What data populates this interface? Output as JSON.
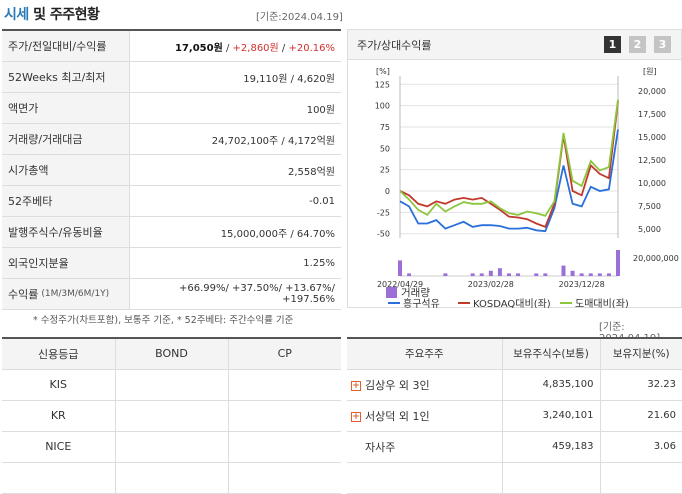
{
  "header": {
    "title_accent": "시세",
    "title_rest": " 및 주주현황",
    "date": "[기준:2024.04.19]"
  },
  "summary": [
    {
      "label": "주가/전일대비/수익률",
      "price": "17,050원",
      "change": "+2,860원",
      "rate": "+20.16%"
    },
    {
      "label": "52Weeks 최고/최저",
      "value": "19,110원 / 4,620원"
    },
    {
      "label": "액면가",
      "value": "100원"
    },
    {
      "label": "거래량/거래대금",
      "value": "24,702,100주 / 4,172억원"
    },
    {
      "label": "시가총액",
      "value": "2,558억원"
    },
    {
      "label": "52주베타",
      "value": "-0.01"
    },
    {
      "label": "발행주식수/유동비율",
      "value": "15,000,000주 / 64.70%"
    },
    {
      "label": "외국인지분율",
      "value": "1.25%"
    },
    {
      "label": "수익률",
      "sub": "(1M/3M/6M/1Y)",
      "value": "+66.99%/ +37.50%/ +13.67%/ +197.56%"
    }
  ],
  "footnote": "* 수정주가(차트포함), 보통주 기준, * 52주베타: 주간수익률 기준",
  "chart_panel": {
    "title": "주가/상대수익률",
    "tabs": [
      "1",
      "2",
      "3"
    ],
    "active_tab": 0,
    "left_unit": "[%]",
    "right_unit": "[원]",
    "volume_label": "20,000,000"
  },
  "chart_data": {
    "type": "line",
    "x": [
      "2022/04/29",
      "2022/05",
      "2022/06",
      "2022/07",
      "2022/08",
      "2022/09",
      "2022/10",
      "2022/11",
      "2022/12",
      "2023/01",
      "2023/02",
      "2023/03",
      "2023/04",
      "2023/05",
      "2023/06",
      "2023/07",
      "2023/08",
      "2023/09",
      "2023/10",
      "2023/11",
      "2023/12",
      "2024/01",
      "2024/02",
      "2024/03",
      "2024/04"
    ],
    "x_tick_labels": [
      "2022/04/29",
      "2023/02/28",
      "2023/12/28"
    ],
    "y_left": {
      "ticks": [
        125,
        100,
        75,
        50,
        25,
        0,
        -25,
        -50
      ],
      "range": [
        -55,
        130
      ]
    },
    "y_right": {
      "ticks": [
        "20,000",
        "17,500",
        "15,000",
        "12,500",
        "10,000",
        "7,500",
        "5,000"
      ],
      "range": [
        4000,
        21200
      ]
    },
    "series": [
      {
        "name": "흥구석유",
        "axis": "left",
        "color": "#2a6fdb",
        "values": [
          -12,
          -18,
          -38,
          -38,
          -34,
          -44,
          -40,
          -36,
          -42,
          -40,
          -40,
          -41,
          -44,
          -44,
          -43,
          -46,
          -47,
          -20,
          30,
          -15,
          -18,
          5,
          0,
          2,
          72
        ]
      },
      {
        "name": "KOSDAQ대비(좌)",
        "axis": "left",
        "color": "#c0392b",
        "values": [
          0,
          -5,
          -15,
          -18,
          -12,
          -15,
          -10,
          -8,
          -10,
          -8,
          -15,
          -22,
          -30,
          -31,
          -33,
          -38,
          -42,
          -15,
          65,
          0,
          -5,
          30,
          20,
          15,
          105
        ]
      },
      {
        "name": "도매대비(좌)",
        "axis": "left",
        "color": "#8cc63e",
        "values": [
          0,
          -10,
          -22,
          -28,
          -15,
          -24,
          -18,
          -13,
          -15,
          -15,
          -12,
          -20,
          -26,
          -28,
          -24,
          -26,
          -29,
          -12,
          68,
          12,
          6,
          35,
          24,
          28,
          107
        ]
      }
    ],
    "volume": {
      "name": "거래량",
      "color": "#9b6fd6",
      "values": [
        6,
        1,
        0,
        0,
        0,
        1,
        0,
        0,
        1,
        1,
        2,
        3,
        1,
        1,
        0,
        1,
        1,
        0,
        4,
        2,
        1,
        1,
        1,
        1,
        10
      ]
    },
    "legend": [
      "흥구석유",
      "KOSDAQ대비(좌)",
      "도매대비(좌)",
      "거래량"
    ]
  },
  "date2": "[기준: 2024.04.19]",
  "credit": {
    "headers": [
      "신용등급",
      "BOND",
      "CP"
    ],
    "rows": [
      [
        "KIS",
        "",
        ""
      ],
      [
        "KR",
        "",
        ""
      ],
      [
        "NICE",
        "",
        ""
      ],
      [
        "",
        "",
        ""
      ]
    ]
  },
  "shareholders": {
    "headers": [
      "주요주주",
      "보유주식수(보통)",
      "보유지분(%)"
    ],
    "rows": [
      {
        "name": "김상우 외 3인",
        "shares": "4,835,100",
        "pct": "32.23",
        "expand": true
      },
      {
        "name": "서상덕 외 1인",
        "shares": "3,240,101",
        "pct": "21.60",
        "expand": true
      },
      {
        "name": "자사주",
        "shares": "459,183",
        "pct": "3.06",
        "expand": false
      }
    ]
  }
}
